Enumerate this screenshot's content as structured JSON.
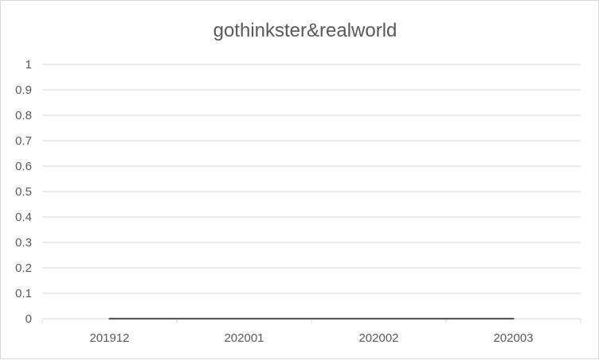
{
  "chart_data": {
    "type": "line",
    "title": "gothinkster&realworld",
    "xlabel": "",
    "ylabel": "",
    "categories": [
      "201912",
      "202001",
      "202002",
      "202003"
    ],
    "series": [
      {
        "values": [
          0,
          0,
          0,
          0
        ],
        "color": "#595959"
      }
    ],
    "ylim": [
      0,
      1
    ],
    "yticks": [
      "0",
      "0.1",
      "0.2",
      "0.3",
      "0.4",
      "0.5",
      "0.6",
      "0.7",
      "0.8",
      "0.9",
      "1"
    ],
    "grid": true,
    "gridline_color": "#d9d9d9",
    "legend": "none"
  }
}
